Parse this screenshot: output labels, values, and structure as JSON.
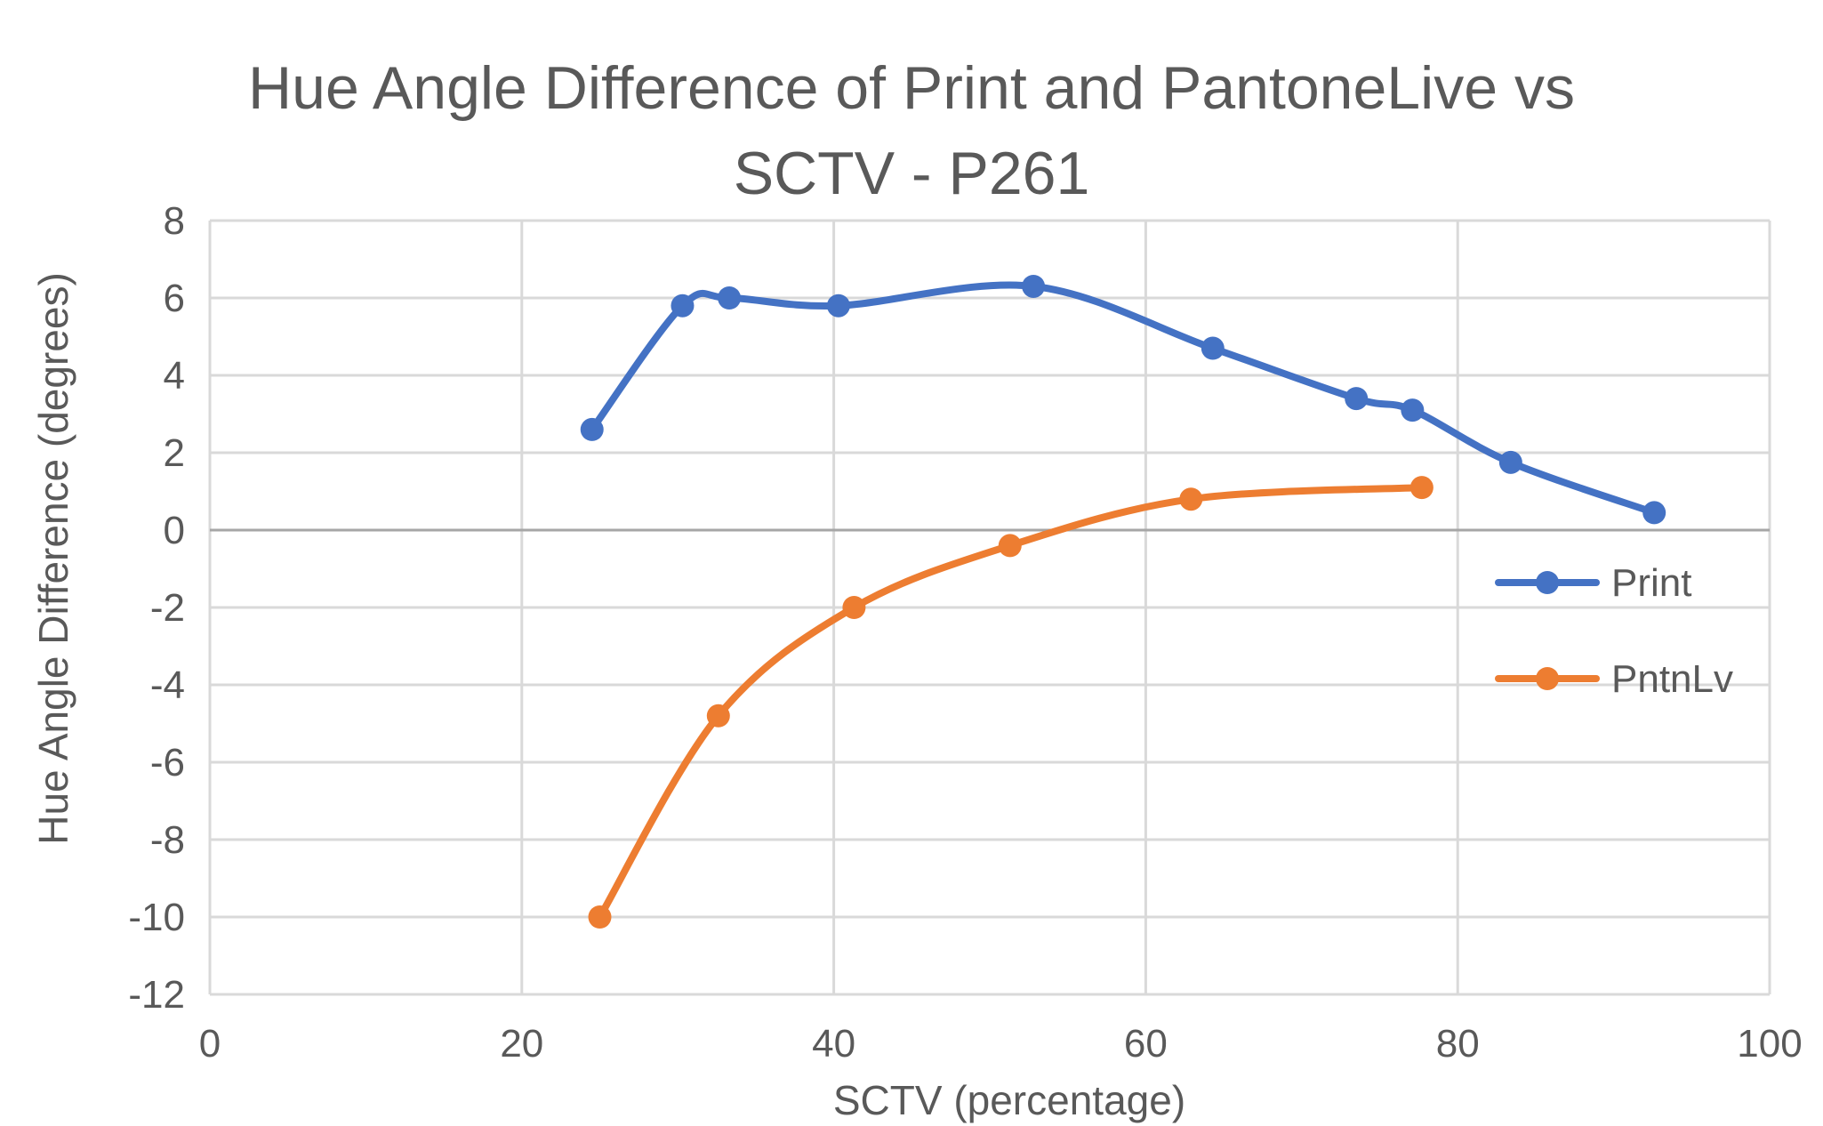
{
  "chart_data": {
    "type": "line",
    "smooth": true,
    "title_lines": [
      "Hue Angle Difference of Print and PantoneLive vs",
      "SCTV - P261"
    ],
    "xlabel": "SCTV (percentage)",
    "ylabel": "Hue Angle Difference  (degrees)",
    "xlim": [
      0,
      100
    ],
    "ylim": [
      -12,
      8
    ],
    "xticks": [
      0,
      20,
      40,
      60,
      80,
      100
    ],
    "yticks": [
      8,
      6,
      4,
      2,
      0,
      -2,
      -4,
      -6,
      -8,
      -10,
      -12
    ],
    "grid": true,
    "legend_position": "right",
    "series": [
      {
        "name": "Print",
        "color": "#4472C4",
        "points": [
          {
            "x": 24.5,
            "y": 2.6
          },
          {
            "x": 30.3,
            "y": 5.8
          },
          {
            "x": 33.3,
            "y": 6.0
          },
          {
            "x": 40.3,
            "y": 5.8
          },
          {
            "x": 52.8,
            "y": 6.3
          },
          {
            "x": 64.3,
            "y": 4.7
          },
          {
            "x": 73.5,
            "y": 3.4
          },
          {
            "x": 77.1,
            "y": 3.1
          },
          {
            "x": 83.4,
            "y": 1.75
          },
          {
            "x": 92.6,
            "y": 0.45
          }
        ]
      },
      {
        "name": "PntnLv",
        "color": "#ED7D31",
        "points": [
          {
            "x": 25.0,
            "y": -10.0
          },
          {
            "x": 32.6,
            "y": -4.8
          },
          {
            "x": 41.3,
            "y": -2.0
          },
          {
            "x": 51.3,
            "y": -0.4
          },
          {
            "x": 62.9,
            "y": 0.8
          },
          {
            "x": 77.7,
            "y": 1.1
          }
        ]
      }
    ]
  }
}
